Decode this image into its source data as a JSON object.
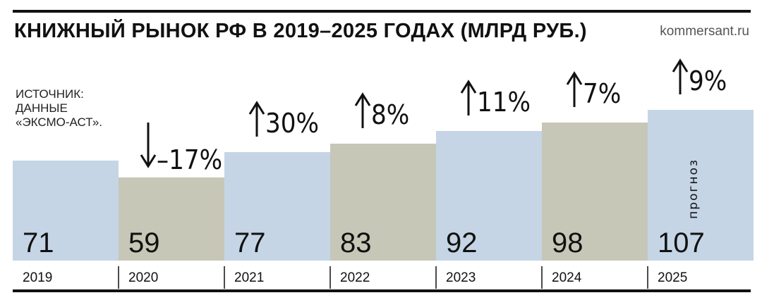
{
  "title": "КНИЖНЫЙ РЫНОК РФ В 2019–2025 ГОДАХ (МЛРД РУБ.)",
  "site": "kommersant.ru",
  "source_lines": [
    "ИСТОЧНИК:",
    "ДАННЫЕ",
    "«ЭКСМО-АСТ»."
  ],
  "forecast_label": "прогноз",
  "colors": {
    "blue": "#c5d5e6",
    "gray": "#c7c7b8",
    "ink": "#111111"
  },
  "chart_data": {
    "type": "bar",
    "title": "КНИЖНЫЙ РЫНОК РФ В 2019–2025 ГОДАХ (МЛРД РУБ.)",
    "categories": [
      "2019",
      "2020",
      "2021",
      "2022",
      "2023",
      "2024",
      "2025"
    ],
    "values": [
      71,
      59,
      77,
      83,
      92,
      98,
      107
    ],
    "changes": [
      "",
      "–17%",
      "30%",
      "8%",
      "11%",
      "7%",
      "9%"
    ],
    "directions": [
      "",
      "down",
      "up",
      "up",
      "up",
      "up",
      "up"
    ],
    "forecast": [
      false,
      false,
      false,
      false,
      false,
      false,
      true
    ],
    "bar_colors": [
      "blue",
      "gray",
      "blue",
      "gray",
      "blue",
      "gray",
      "blue"
    ]
  }
}
